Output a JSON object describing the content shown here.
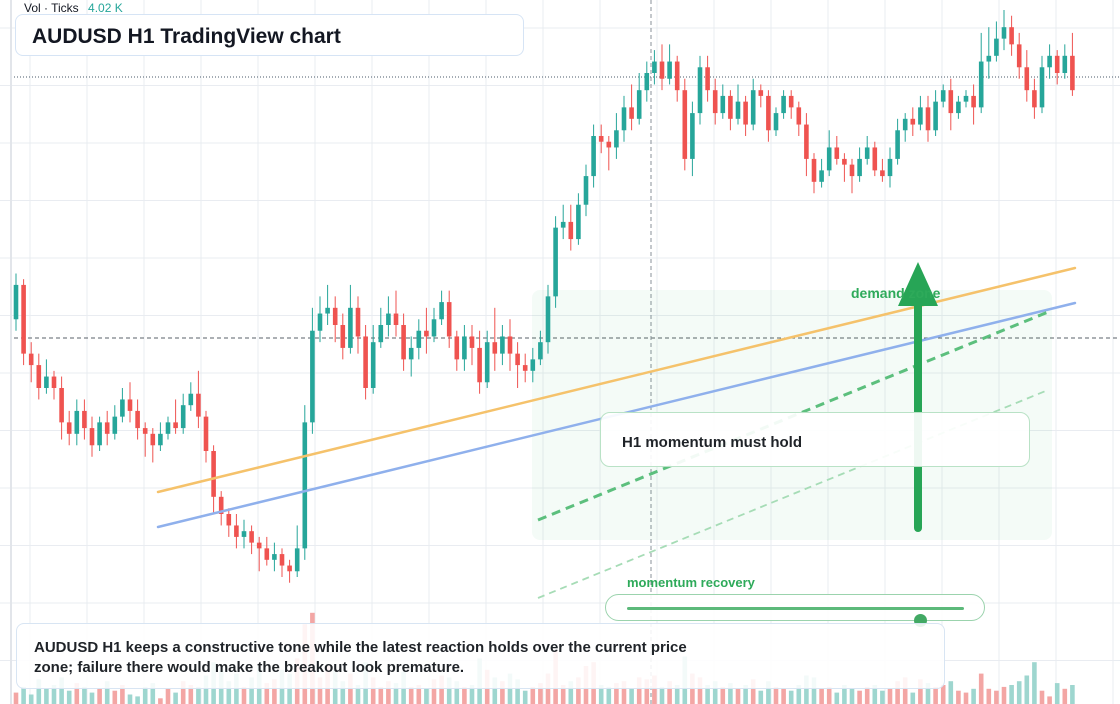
{
  "header": {
    "volume_label": "Vol · Ticks",
    "volume_value": "4.02 K",
    "title": "AUDUSD H1 TradingView chart"
  },
  "annotations": {
    "zone_label": "demand zone",
    "callout": "H1 momentum must hold",
    "slider_label": "momentum recovery",
    "slider_level": 0.87,
    "summary": "AUDUSD H1 keeps a constructive tone while the latest reaction holds over the current price zone; failure there would make the breakout look premature."
  },
  "colors": {
    "up": "#26a69a",
    "down": "#ef5350",
    "vol_up": "#9ed6cf",
    "vol_down": "#f3a6a4",
    "trend_orange": "#f5c26b",
    "trend_blue": "#8fb0ec",
    "accent_green": "#27a556",
    "grid": "#e9ecf1"
  },
  "chart_data": {
    "type": "candlestick",
    "symbol": "AUDUSD",
    "timeframe": "H1",
    "ylim": [
      0,
      100
    ],
    "grid": true,
    "candles": [
      [
        56,
        62,
        54,
        64
      ],
      [
        62,
        50,
        48,
        63
      ],
      [
        50,
        48,
        45,
        52
      ],
      [
        48,
        44,
        42,
        50
      ],
      [
        44,
        46,
        43,
        49
      ],
      [
        46,
        44,
        42,
        47
      ],
      [
        44,
        38,
        35,
        46
      ],
      [
        38,
        36,
        34,
        40
      ],
      [
        36,
        40,
        34,
        42
      ],
      [
        40,
        37,
        35,
        42
      ],
      [
        37,
        34,
        32,
        39
      ],
      [
        34,
        38,
        33,
        39
      ],
      [
        38,
        36,
        34,
        40
      ],
      [
        36,
        39,
        35,
        41
      ],
      [
        39,
        42,
        38,
        44
      ],
      [
        42,
        40,
        38,
        45
      ],
      [
        40,
        37,
        35,
        42
      ],
      [
        37,
        36,
        32,
        38
      ],
      [
        36,
        34,
        31,
        37
      ],
      [
        34,
        36,
        33,
        38
      ],
      [
        36,
        38,
        35,
        39
      ],
      [
        38,
        37,
        36,
        42
      ],
      [
        37,
        41,
        36,
        43
      ],
      [
        41,
        43,
        40,
        45
      ],
      [
        43,
        39,
        37,
        47
      ],
      [
        39,
        33,
        31,
        40
      ],
      [
        33,
        25,
        22,
        34
      ],
      [
        25,
        22,
        20,
        26
      ],
      [
        22,
        20,
        18,
        23
      ],
      [
        20,
        18,
        16,
        22
      ],
      [
        18,
        19,
        16,
        21
      ],
      [
        19,
        17,
        15,
        20
      ],
      [
        17,
        16,
        12,
        18
      ],
      [
        16,
        14,
        13,
        18
      ],
      [
        14,
        15,
        12,
        17
      ],
      [
        15,
        13,
        11,
        16
      ],
      [
        13,
        12,
        10,
        14
      ],
      [
        12,
        16,
        11,
        20
      ],
      [
        16,
        38,
        14,
        41
      ],
      [
        38,
        54,
        36,
        58
      ],
      [
        54,
        57,
        52,
        60
      ],
      [
        57,
        58,
        55,
        62
      ],
      [
        58,
        55,
        52,
        60
      ],
      [
        55,
        51,
        49,
        57
      ],
      [
        51,
        58,
        50,
        62
      ],
      [
        58,
        53,
        50,
        60
      ],
      [
        53,
        44,
        42,
        55
      ],
      [
        44,
        52,
        43,
        55
      ],
      [
        52,
        55,
        51,
        58
      ],
      [
        55,
        57,
        53,
        60
      ],
      [
        57,
        55,
        53,
        61
      ],
      [
        55,
        49,
        47,
        57
      ],
      [
        49,
        51,
        46,
        53
      ],
      [
        51,
        54,
        49,
        56
      ],
      [
        54,
        53,
        50,
        58
      ],
      [
        53,
        56,
        52,
        58
      ],
      [
        56,
        59,
        55,
        61
      ],
      [
        59,
        53,
        51,
        61
      ],
      [
        53,
        49,
        47,
        54
      ],
      [
        49,
        53,
        47,
        55
      ],
      [
        53,
        51,
        48,
        55
      ],
      [
        51,
        45,
        43,
        54
      ],
      [
        45,
        52,
        44,
        54
      ],
      [
        52,
        50,
        47,
        58
      ],
      [
        50,
        53,
        48,
        55
      ],
      [
        53,
        50,
        47,
        56
      ],
      [
        50,
        48,
        44,
        52
      ],
      [
        48,
        47,
        45,
        50
      ],
      [
        47,
        49,
        45,
        51
      ],
      [
        49,
        52,
        48,
        54
      ],
      [
        52,
        60,
        50,
        62
      ],
      [
        60,
        72,
        58,
        74
      ],
      [
        72,
        73,
        70,
        76
      ],
      [
        73,
        70,
        68,
        76
      ],
      [
        70,
        76,
        69,
        78
      ],
      [
        76,
        81,
        74,
        83
      ],
      [
        81,
        88,
        79,
        90
      ],
      [
        88,
        87,
        85,
        90
      ],
      [
        87,
        86,
        82,
        88
      ],
      [
        86,
        89,
        84,
        92
      ],
      [
        89,
        93,
        87,
        95
      ],
      [
        93,
        91,
        89,
        97
      ],
      [
        91,
        96,
        90,
        99
      ],
      [
        96,
        99,
        94,
        101
      ],
      [
        99,
        101,
        97,
        103
      ],
      [
        101,
        98,
        96,
        104
      ],
      [
        98,
        101,
        97,
        104
      ],
      [
        101,
        96,
        94,
        102
      ],
      [
        96,
        84,
        82,
        98
      ],
      [
        84,
        92,
        81,
        94
      ],
      [
        92,
        100,
        90,
        102
      ],
      [
        100,
        96,
        94,
        102
      ],
      [
        96,
        92,
        90,
        98
      ],
      [
        92,
        95,
        91,
        97
      ],
      [
        95,
        91,
        89,
        96
      ],
      [
        91,
        94,
        90,
        97
      ],
      [
        94,
        90,
        88,
        95
      ],
      [
        90,
        96,
        89,
        98
      ],
      [
        96,
        95,
        93,
        97
      ],
      [
        95,
        89,
        87,
        96
      ],
      [
        89,
        92,
        88,
        93
      ],
      [
        92,
        95,
        91,
        96
      ],
      [
        95,
        93,
        91,
        96
      ],
      [
        93,
        90,
        88,
        94
      ],
      [
        90,
        84,
        81,
        92
      ],
      [
        84,
        80,
        78,
        85
      ],
      [
        80,
        82,
        79,
        84
      ],
      [
        82,
        86,
        81,
        89
      ],
      [
        86,
        84,
        83,
        88
      ],
      [
        84,
        83,
        80,
        85
      ],
      [
        83,
        81,
        78,
        84
      ],
      [
        81,
        84,
        80,
        86
      ],
      [
        84,
        86,
        83,
        88
      ],
      [
        86,
        82,
        81,
        87
      ],
      [
        82,
        81,
        80,
        84
      ],
      [
        81,
        84,
        79,
        86
      ],
      [
        84,
        89,
        83,
        91
      ],
      [
        89,
        91,
        87,
        92
      ],
      [
        91,
        90,
        88,
        93
      ],
      [
        90,
        93,
        89,
        95
      ],
      [
        93,
        89,
        87,
        95
      ],
      [
        89,
        94,
        88,
        96
      ],
      [
        94,
        96,
        93,
        97
      ],
      [
        96,
        92,
        89,
        98
      ],
      [
        92,
        94,
        91,
        95
      ],
      [
        94,
        95,
        93,
        96
      ],
      [
        95,
        93,
        90,
        97
      ],
      [
        93,
        101,
        92,
        106
      ],
      [
        101,
        102,
        98,
        107
      ],
      [
        102,
        105,
        101,
        108
      ],
      [
        105,
        107,
        103,
        110
      ],
      [
        107,
        104,
        102,
        109
      ],
      [
        104,
        100,
        98,
        106
      ],
      [
        100,
        96,
        94,
        103
      ],
      [
        96,
        93,
        91,
        98
      ],
      [
        93,
        100,
        92,
        102
      ],
      [
        100,
        102,
        98,
        104
      ],
      [
        102,
        99,
        97,
        103
      ],
      [
        99,
        102,
        98,
        104
      ],
      [
        102,
        96,
        95,
        106
      ]
    ],
    "volume": [
      [
        6,
        0
      ],
      [
        9,
        1
      ],
      [
        5,
        1
      ],
      [
        13,
        1
      ],
      [
        8,
        1
      ],
      [
        10,
        1
      ],
      [
        14,
        1
      ],
      [
        7,
        1
      ],
      [
        11,
        0
      ],
      [
        9,
        1
      ],
      [
        6,
        1
      ],
      [
        8,
        0
      ],
      [
        12,
        1
      ],
      [
        7,
        0
      ],
      [
        10,
        0
      ],
      [
        5,
        1
      ],
      [
        4,
        1
      ],
      [
        9,
        1
      ],
      [
        11,
        1
      ],
      [
        3,
        0
      ],
      [
        8,
        0
      ],
      [
        6,
        1
      ],
      [
        12,
        0
      ],
      [
        10,
        0
      ],
      [
        9,
        1
      ],
      [
        15,
        1
      ],
      [
        22,
        1
      ],
      [
        18,
        1
      ],
      [
        12,
        1
      ],
      [
        16,
        1
      ],
      [
        9,
        0
      ],
      [
        14,
        1
      ],
      [
        20,
        1
      ],
      [
        11,
        0
      ],
      [
        13,
        0
      ],
      [
        18,
        1
      ],
      [
        16,
        1
      ],
      [
        24,
        0
      ],
      [
        42,
        0
      ],
      [
        48,
        0
      ],
      [
        14,
        0
      ],
      [
        20,
        0
      ],
      [
        18,
        1
      ],
      [
        12,
        1
      ],
      [
        16,
        0
      ],
      [
        10,
        1
      ],
      [
        22,
        1
      ],
      [
        14,
        0
      ],
      [
        9,
        0
      ],
      [
        12,
        0
      ],
      [
        11,
        1
      ],
      [
        17,
        1
      ],
      [
        9,
        0
      ],
      [
        10,
        0
      ],
      [
        8,
        1
      ],
      [
        13,
        0
      ],
      [
        15,
        0
      ],
      [
        14,
        1
      ],
      [
        12,
        1
      ],
      [
        9,
        0
      ],
      [
        10,
        1
      ],
      [
        24,
        1
      ],
      [
        18,
        0
      ],
      [
        14,
        1
      ],
      [
        12,
        0
      ],
      [
        16,
        1
      ],
      [
        13,
        1
      ],
      [
        7,
        1
      ],
      [
        9,
        0
      ],
      [
        11,
        0
      ],
      [
        16,
        0
      ],
      [
        28,
        0
      ],
      [
        10,
        0
      ],
      [
        12,
        1
      ],
      [
        14,
        0
      ],
      [
        20,
        0
      ],
      [
        22,
        0
      ],
      [
        10,
        1
      ],
      [
        9,
        1
      ],
      [
        11,
        0
      ],
      [
        12,
        0
      ],
      [
        8,
        1
      ],
      [
        14,
        0
      ],
      [
        13,
        0
      ],
      [
        15,
        0
      ],
      [
        9,
        1
      ],
      [
        12,
        0
      ],
      [
        10,
        1
      ],
      [
        25,
        1
      ],
      [
        16,
        0
      ],
      [
        14,
        0
      ],
      [
        10,
        1
      ],
      [
        12,
        1
      ],
      [
        9,
        0
      ],
      [
        11,
        1
      ],
      [
        8,
        0
      ],
      [
        10,
        1
      ],
      [
        13,
        0
      ],
      [
        7,
        1
      ],
      [
        12,
        1
      ],
      [
        9,
        0
      ],
      [
        8,
        0
      ],
      [
        7,
        1
      ],
      [
        10,
        1
      ],
      [
        15,
        1
      ],
      [
        14,
        1
      ],
      [
        8,
        0
      ],
      [
        9,
        0
      ],
      [
        6,
        1
      ],
      [
        10,
        1
      ],
      [
        8,
        1
      ],
      [
        7,
        0
      ],
      [
        9,
        0
      ],
      [
        10,
        1
      ],
      [
        7,
        1
      ],
      [
        8,
        0
      ],
      [
        12,
        0
      ],
      [
        14,
        0
      ],
      [
        6,
        1
      ],
      [
        13,
        0
      ],
      [
        11,
        1
      ],
      [
        9,
        0
      ],
      [
        10,
        0
      ],
      [
        12,
        1
      ],
      [
        7,
        0
      ],
      [
        6,
        0
      ],
      [
        8,
        1
      ],
      [
        16,
        0
      ],
      [
        8,
        0
      ],
      [
        7,
        0
      ],
      [
        9,
        0
      ],
      [
        10,
        1
      ],
      [
        12,
        1
      ],
      [
        15,
        1
      ],
      [
        22,
        1
      ],
      [
        7,
        0
      ],
      [
        4,
        0
      ],
      [
        11,
        1
      ],
      [
        8,
        0
      ],
      [
        10,
        1
      ]
    ]
  }
}
